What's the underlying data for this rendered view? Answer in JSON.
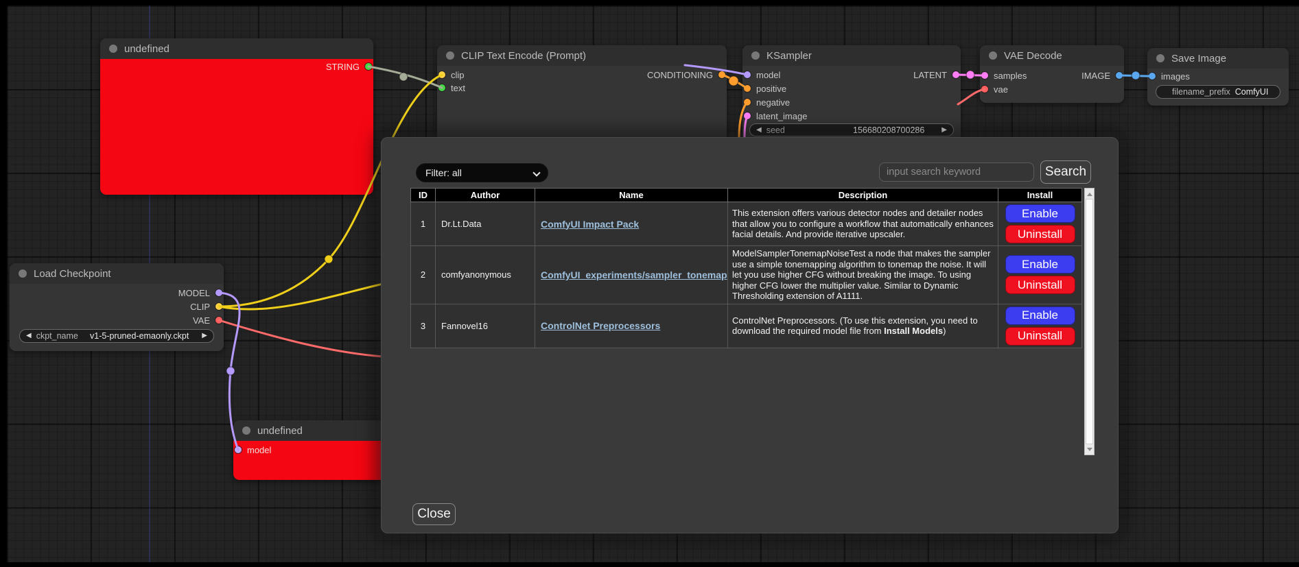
{
  "canvas": {
    "nodes": {
      "undefined_top": {
        "title": "undefined",
        "output": "STRING"
      },
      "clip_text_encode": {
        "title": "CLIP Text Encode (Prompt)",
        "inputs": [
          "clip",
          "text"
        ],
        "output": "CONDITIONING"
      },
      "ksampler": {
        "title": "KSampler",
        "inputs": [
          "model",
          "positive",
          "negative",
          "latent_image"
        ],
        "output": "LATENT",
        "seed_label": "seed",
        "seed_value": "156680208700286"
      },
      "vae_decode": {
        "title": "VAE Decode",
        "inputs": [
          "samples",
          "vae"
        ],
        "output": "IMAGE"
      },
      "save_image": {
        "title": "Save Image",
        "input": "images",
        "widget_label": "filename_prefix",
        "widget_value": "ComfyUI"
      },
      "load_checkpoint": {
        "title": "Load Checkpoint",
        "outputs": [
          "MODEL",
          "CLIP",
          "VAE"
        ],
        "widget_label": "ckpt_name",
        "widget_value": "v1-5-pruned-emaonly.ckpt"
      },
      "undefined_bottom": {
        "title": "undefined",
        "input": "model"
      }
    }
  },
  "dialog": {
    "filter_label": "Filter: all",
    "search_placeholder": "input search keyword",
    "search_button": "Search",
    "close_button": "Close",
    "table": {
      "headers": [
        "ID",
        "Author",
        "Name",
        "Description",
        "Install"
      ],
      "rows": [
        {
          "id": "1",
          "author": "Dr.Lt.Data",
          "name": "ComfyUI Impact Pack",
          "desc_pre": "This extension offers various detector nodes and detailer nodes that allow you to configure a workflow that automatically enhances facial details. And provide iterative upscaler.",
          "desc_bold": "",
          "desc_post": "",
          "enable": "Enable",
          "uninstall": "Uninstall"
        },
        {
          "id": "2",
          "author": "comfyanonymous",
          "name": "ComfyUI_experiments/sampler_tonemap",
          "desc_pre": "ModelSamplerTonemapNoiseTest a node that makes the sampler use a simple tonemapping algorithm to tonemap the noise. It will let you use higher CFG without breaking the image. To using higher CFG lower the multiplier value. Similar to Dynamic Thresholding extension of A1111.",
          "desc_bold": "",
          "desc_post": "",
          "enable": "Enable",
          "uninstall": "Uninstall"
        },
        {
          "id": "3",
          "author": "Fannovel16",
          "name": "ControlNet Preprocessors",
          "desc_pre": "ControlNet Preprocessors. (To use this extension, you need to download the required model file from ",
          "desc_bold": "Install Models",
          "desc_post": ")",
          "enable": "Enable",
          "uninstall": "Uninstall"
        }
      ]
    }
  },
  "icons": {
    "widget_prev": "◀",
    "widget_next": "▶"
  },
  "colors": {
    "error_node": "#f40612",
    "enable_button": "#3c3cf0",
    "uninstall_button": "#ef1020",
    "link": "#9fc0dd",
    "slot_yellow": "#ffd246",
    "slot_green": "#45d945",
    "slot_purple": "#b49aff",
    "slot_orange": "#ff9c2e",
    "slot_pink": "#ff7df5",
    "slot_red": "#ff5e5e",
    "slot_blue": "#5aa7f0",
    "wire_string": "#a4ab97"
  }
}
